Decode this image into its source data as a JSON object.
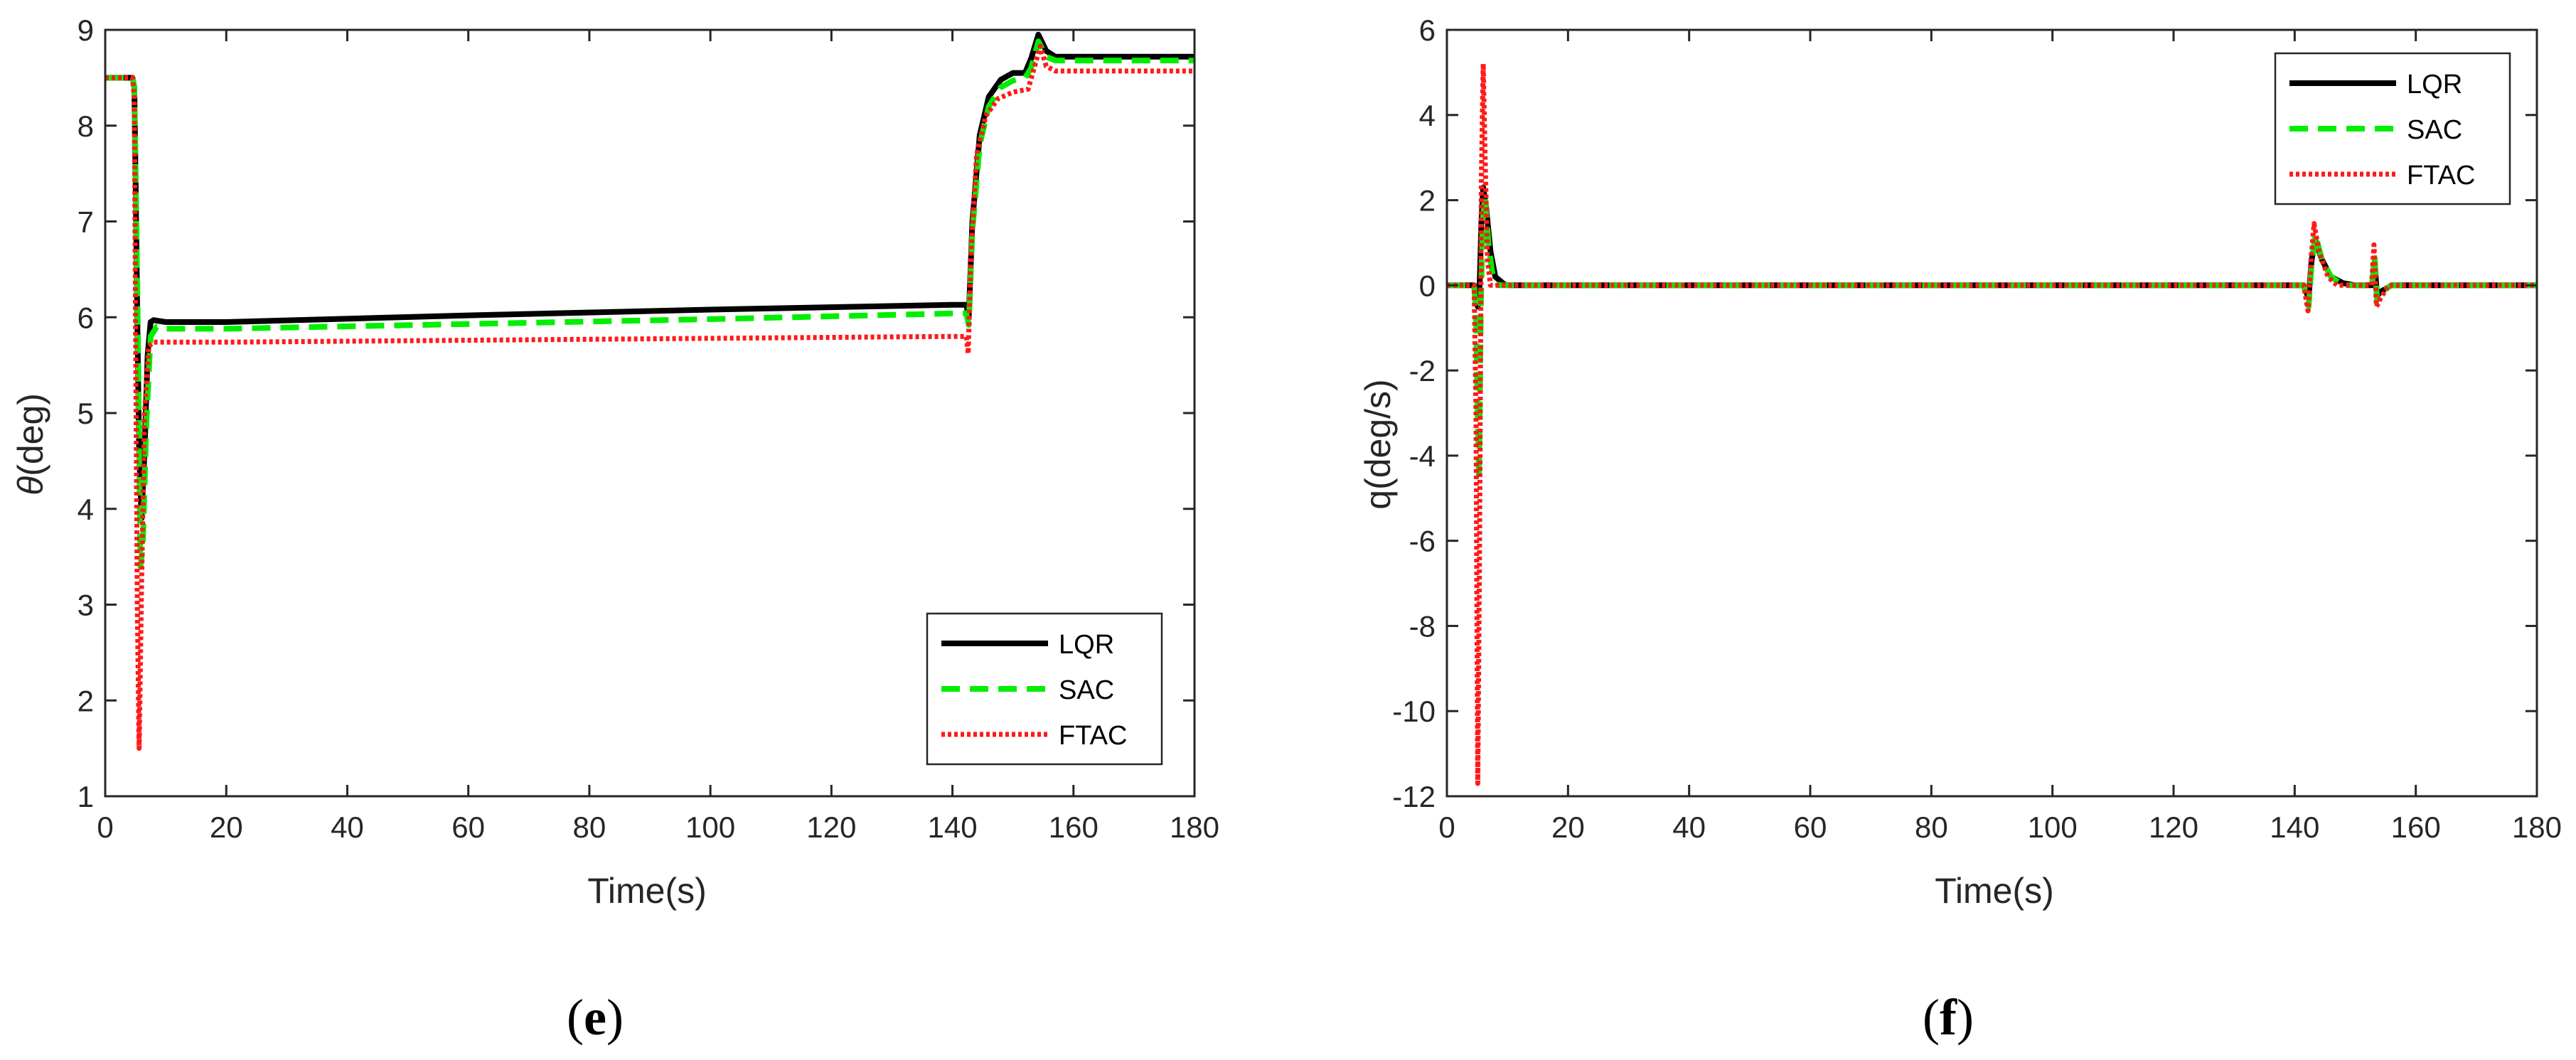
{
  "chart_data": [
    {
      "type": "line",
      "caption": "e",
      "xlabel": "Time(s)",
      "ylabel_symbol": "θ",
      "ylabel_unit": "(deg)",
      "xlim": [
        0,
        180
      ],
      "ylim": [
        1,
        9
      ],
      "xticks": [
        0,
        20,
        40,
        60,
        80,
        100,
        120,
        140,
        160,
        180
      ],
      "yticks": [
        1,
        2,
        3,
        4,
        5,
        6,
        7,
        8,
        9
      ],
      "legend_position": "bottom-right",
      "series": [
        {
          "name": "LQR",
          "color": "#000000",
          "style": "solid",
          "points": [
            [
              0,
              8.5
            ],
            [
              4.5,
              8.5
            ],
            [
              4.8,
              8.4
            ],
            [
              5.0,
              7.5
            ],
            [
              5.3,
              6.0
            ],
            [
              5.6,
              4.6
            ],
            [
              6.0,
              3.9
            ],
            [
              6.5,
              4.6
            ],
            [
              7.0,
              5.6
            ],
            [
              7.5,
              5.95
            ],
            [
              8,
              5.97
            ],
            [
              10,
              5.95
            ],
            [
              20,
              5.95
            ],
            [
              60,
              6.02
            ],
            [
              100,
              6.08
            ],
            [
              140,
              6.13
            ],
            [
              142.3,
              6.13
            ],
            [
              142.7,
              6.0
            ],
            [
              143.3,
              7.0
            ],
            [
              144.5,
              7.9
            ],
            [
              146,
              8.3
            ],
            [
              148,
              8.48
            ],
            [
              150,
              8.55
            ],
            [
              152,
              8.55
            ],
            [
              153,
              8.7
            ],
            [
              154.2,
              8.95
            ],
            [
              155.5,
              8.78
            ],
            [
              157,
              8.72
            ],
            [
              180,
              8.72
            ]
          ]
        },
        {
          "name": "SAC",
          "color": "#00ee00",
          "style": "dashed",
          "points": [
            [
              0,
              8.5
            ],
            [
              4.5,
              8.5
            ],
            [
              4.8,
              8.4
            ],
            [
              5.0,
              7.6
            ],
            [
              5.4,
              5.8
            ],
            [
              5.8,
              3.4
            ],
            [
              6.2,
              3.6
            ],
            [
              6.8,
              4.9
            ],
            [
              7.5,
              5.8
            ],
            [
              8.5,
              5.9
            ],
            [
              10,
              5.88
            ],
            [
              20,
              5.88
            ],
            [
              60,
              5.93
            ],
            [
              100,
              5.98
            ],
            [
              140,
              6.04
            ],
            [
              142.3,
              6.04
            ],
            [
              142.7,
              5.92
            ],
            [
              143.3,
              6.9
            ],
            [
              144.5,
              7.8
            ],
            [
              146,
              8.2
            ],
            [
              148,
              8.4
            ],
            [
              150,
              8.47
            ],
            [
              152,
              8.5
            ],
            [
              153,
              8.6
            ],
            [
              154.2,
              8.88
            ],
            [
              155.5,
              8.72
            ],
            [
              157,
              8.68
            ],
            [
              180,
              8.68
            ]
          ]
        },
        {
          "name": "FTAC",
          "color": "#ff1a1a",
          "style": "dotted",
          "points": [
            [
              0,
              8.5
            ],
            [
              4.5,
              8.5
            ],
            [
              4.8,
              8.3
            ],
            [
              5.0,
              6.0
            ],
            [
              5.3,
              3.0
            ],
            [
              5.6,
              1.5
            ],
            [
              6.0,
              3.2
            ],
            [
              6.5,
              5.0
            ],
            [
              7.2,
              5.7
            ],
            [
              8,
              5.74
            ],
            [
              20,
              5.74
            ],
            [
              60,
              5.76
            ],
            [
              100,
              5.78
            ],
            [
              140,
              5.8
            ],
            [
              142.3,
              5.8
            ],
            [
              142.6,
              5.62
            ],
            [
              143.1,
              6.7
            ],
            [
              144,
              7.7
            ],
            [
              145.5,
              8.1
            ],
            [
              147.5,
              8.28
            ],
            [
              150,
              8.35
            ],
            [
              152.5,
              8.38
            ],
            [
              153.5,
              8.6
            ],
            [
              154.5,
              8.83
            ],
            [
              155.5,
              8.62
            ],
            [
              157,
              8.57
            ],
            [
              180,
              8.57
            ]
          ]
        }
      ]
    },
    {
      "type": "line",
      "caption": "f",
      "xlabel": "Time(s)",
      "ylabel": "q(deg/s)",
      "xlim": [
        0,
        180
      ],
      "ylim": [
        -12,
        6
      ],
      "xticks": [
        0,
        20,
        40,
        60,
        80,
        100,
        120,
        140,
        160,
        180
      ],
      "yticks": [
        -12,
        -10,
        -8,
        -6,
        -4,
        -2,
        0,
        2,
        4,
        6
      ],
      "legend_position": "top-right",
      "series": [
        {
          "name": "LQR",
          "color": "#000000",
          "style": "solid",
          "points": [
            [
              0,
              0
            ],
            [
              4.5,
              0
            ],
            [
              4.8,
              -0.4
            ],
            [
              5.1,
              -0.5
            ],
            [
              5.4,
              0
            ],
            [
              5.7,
              1.5
            ],
            [
              6.0,
              2.3
            ],
            [
              6.5,
              1.8
            ],
            [
              7.2,
              0.8
            ],
            [
              8,
              0.2
            ],
            [
              9.5,
              0.02
            ],
            [
              10,
              0
            ],
            [
              141.5,
              0
            ],
            [
              142.3,
              -0.3
            ],
            [
              142.8,
              0.6
            ],
            [
              143.4,
              1.05
            ],
            [
              144.5,
              0.6
            ],
            [
              146,
              0.2
            ],
            [
              148,
              0.05
            ],
            [
              150,
              0
            ],
            [
              152.8,
              0
            ],
            [
              153.2,
              0.55
            ],
            [
              153.6,
              -0.25
            ],
            [
              154.2,
              -0.15
            ],
            [
              156,
              0
            ],
            [
              180,
              0
            ]
          ]
        },
        {
          "name": "SAC",
          "color": "#00ee00",
          "style": "dashed",
          "points": [
            [
              0,
              0
            ],
            [
              4.5,
              0
            ],
            [
              4.8,
              -0.6
            ],
            [
              5.0,
              -2.5
            ],
            [
              5.3,
              -4.6
            ],
            [
              5.6,
              -0.5
            ],
            [
              5.9,
              1.5
            ],
            [
              6.3,
              2.1
            ],
            [
              6.9,
              0.9
            ],
            [
              7.6,
              0.2
            ],
            [
              8.5,
              0
            ],
            [
              141.5,
              0
            ],
            [
              142.3,
              -0.5
            ],
            [
              142.8,
              0.5
            ],
            [
              143.4,
              1.2
            ],
            [
              144.5,
              0.6
            ],
            [
              146,
              0.2
            ],
            [
              148,
              0
            ],
            [
              152.8,
              0
            ],
            [
              153.2,
              0.7
            ],
            [
              153.6,
              -0.35
            ],
            [
              154.3,
              -0.15
            ],
            [
              156,
              0
            ],
            [
              180,
              0
            ]
          ]
        },
        {
          "name": "FTAC",
          "color": "#ff1a1a",
          "style": "dotted",
          "points": [
            [
              0,
              0
            ],
            [
              4.5,
              0
            ],
            [
              4.8,
              -3
            ],
            [
              5.1,
              -11.7
            ],
            [
              5.4,
              -6
            ],
            [
              5.7,
              2.5
            ],
            [
              6.0,
              5.2
            ],
            [
              6.3,
              3.0
            ],
            [
              6.7,
              0.6
            ],
            [
              7.2,
              0
            ],
            [
              141.5,
              0
            ],
            [
              142.2,
              -0.6
            ],
            [
              142.7,
              0.6
            ],
            [
              143.2,
              1.45
            ],
            [
              144,
              0.8
            ],
            [
              145.5,
              0.2
            ],
            [
              147,
              0
            ],
            [
              152.7,
              0
            ],
            [
              153.1,
              0.95
            ],
            [
              153.5,
              -0.5
            ],
            [
              154.2,
              -0.3
            ],
            [
              155.5,
              0
            ],
            [
              180,
              0
            ]
          ]
        }
      ]
    }
  ]
}
